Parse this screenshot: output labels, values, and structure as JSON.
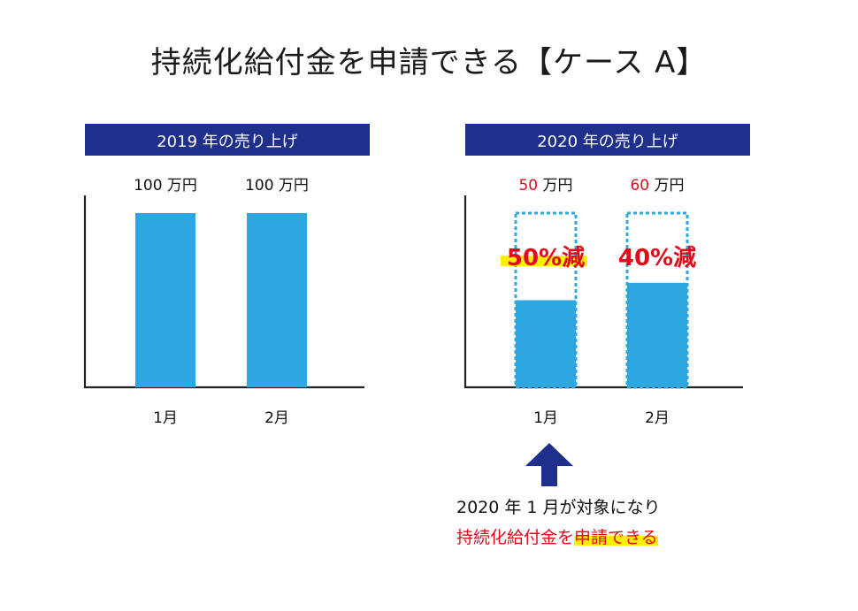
{
  "page_title": "持続化給付金を申請できる【ケース A】",
  "colors": {
    "bar": "#2ea7e0",
    "header_bg": "#1f2f8c",
    "header_text": "#ffffff",
    "accent_red": "#e00a1a",
    "highlight": "#ffee00",
    "arrow": "#1f2f8c",
    "axis": "#222222"
  },
  "arrow_icon": "up-arrow-icon",
  "chart_data": [
    {
      "type": "bar",
      "title": "2019 年の売り上げ",
      "categories": [
        "1月",
        "2月"
      ],
      "values": [
        100,
        100
      ],
      "value_labels": [
        "100 万円",
        "100 万円"
      ],
      "ylim": [
        0,
        100
      ]
    },
    {
      "type": "bar",
      "title": "2020 年の売り上げ",
      "categories": [
        "1月",
        "2月"
      ],
      "values": [
        50,
        60
      ],
      "value_labels": [
        "50 万円",
        "60 万円"
      ],
      "reference_values": [
        100,
        100
      ],
      "reductions": [
        "50%減",
        "40%減"
      ],
      "ylim": [
        0,
        100
      ]
    }
  ],
  "caption": {
    "line1": "2020 年 1 月が対象になり",
    "line2_prefix": "持続化給付金を",
    "line2_highlight": "申請できる"
  }
}
